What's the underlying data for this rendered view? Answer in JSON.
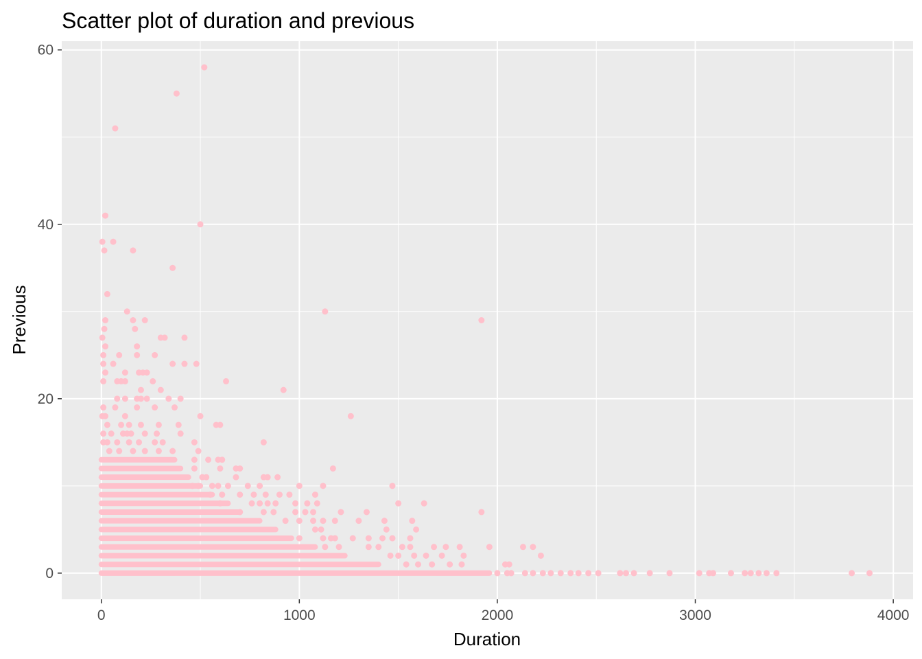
{
  "chart_data": {
    "type": "scatter",
    "title": "Scatter plot of duration and previous",
    "xlabel": "Duration",
    "ylabel": "Previous",
    "xlim": [
      -200,
      4100
    ],
    "ylim": [
      -3,
      61
    ],
    "x_ticks": [
      0,
      1000,
      2000,
      3000,
      4000
    ],
    "y_ticks": [
      0,
      20,
      40,
      60
    ],
    "grid": true,
    "point_color": "#FFC0CB",
    "panel_color": "#EBEBEB",
    "grid_color": "#FFFFFF",
    "dense_bands": [
      {
        "y": 0,
        "x_min": 0,
        "x_max": 1960
      },
      {
        "y": 1,
        "x_min": 0,
        "x_max": 1400
      },
      {
        "y": 2,
        "x_min": 0,
        "x_max": 1230
      },
      {
        "y": 3,
        "x_min": 0,
        "x_max": 1080
      },
      {
        "y": 4,
        "x_min": 0,
        "x_max": 960
      },
      {
        "y": 5,
        "x_min": 0,
        "x_max": 880
      },
      {
        "y": 6,
        "x_min": 0,
        "x_max": 800
      },
      {
        "y": 7,
        "x_min": 0,
        "x_max": 700
      },
      {
        "y": 8,
        "x_min": 0,
        "x_max": 640
      },
      {
        "y": 9,
        "x_min": 0,
        "x_max": 560
      },
      {
        "y": 10,
        "x_min": 0,
        "x_max": 500
      },
      {
        "y": 11,
        "x_min": 0,
        "x_max": 440
      },
      {
        "y": 12,
        "x_min": 0,
        "x_max": 400
      },
      {
        "y": 13,
        "x_min": 0,
        "x_max": 370
      }
    ],
    "points": [
      [
        520,
        58
      ],
      [
        380,
        55
      ],
      [
        70,
        51
      ],
      [
        20,
        41
      ],
      [
        500,
        40
      ],
      [
        5,
        38
      ],
      [
        60,
        38
      ],
      [
        15,
        37
      ],
      [
        160,
        37
      ],
      [
        360,
        35
      ],
      [
        30,
        32
      ],
      [
        1130,
        30
      ],
      [
        130,
        30
      ],
      [
        20,
        29
      ],
      [
        160,
        29
      ],
      [
        220,
        29
      ],
      [
        1920,
        29
      ],
      [
        15,
        28
      ],
      [
        170,
        28
      ],
      [
        300,
        27
      ],
      [
        320,
        27
      ],
      [
        420,
        27
      ],
      [
        5,
        27
      ],
      [
        20,
        26
      ],
      [
        180,
        26
      ],
      [
        10,
        25
      ],
      [
        90,
        25
      ],
      [
        180,
        25
      ],
      [
        270,
        25
      ],
      [
        10,
        24
      ],
      [
        60,
        24
      ],
      [
        360,
        24
      ],
      [
        420,
        24
      ],
      [
        480,
        24
      ],
      [
        20,
        23
      ],
      [
        120,
        23
      ],
      [
        190,
        23
      ],
      [
        210,
        23
      ],
      [
        230,
        23
      ],
      [
        10,
        22
      ],
      [
        80,
        22
      ],
      [
        100,
        22
      ],
      [
        120,
        22
      ],
      [
        260,
        22
      ],
      [
        630,
        22
      ],
      [
        200,
        21
      ],
      [
        300,
        21
      ],
      [
        920,
        21
      ],
      [
        80,
        20
      ],
      [
        120,
        20
      ],
      [
        180,
        20
      ],
      [
        200,
        20
      ],
      [
        230,
        20
      ],
      [
        340,
        20
      ],
      [
        400,
        20
      ],
      [
        10,
        19
      ],
      [
        70,
        19
      ],
      [
        180,
        19
      ],
      [
        270,
        19
      ],
      [
        370,
        19
      ],
      [
        5,
        18
      ],
      [
        20,
        18
      ],
      [
        120,
        18
      ],
      [
        500,
        18
      ],
      [
        1260,
        18
      ],
      [
        30,
        17
      ],
      [
        100,
        17
      ],
      [
        140,
        17
      ],
      [
        200,
        17
      ],
      [
        290,
        17
      ],
      [
        390,
        17
      ],
      [
        580,
        17
      ],
      [
        600,
        17
      ],
      [
        10,
        16
      ],
      [
        50,
        16
      ],
      [
        110,
        16
      ],
      [
        130,
        16
      ],
      [
        150,
        16
      ],
      [
        220,
        16
      ],
      [
        280,
        16
      ],
      [
        400,
        16
      ],
      [
        10,
        15
      ],
      [
        30,
        15
      ],
      [
        80,
        15
      ],
      [
        140,
        15
      ],
      [
        190,
        15
      ],
      [
        270,
        15
      ],
      [
        310,
        15
      ],
      [
        470,
        15
      ],
      [
        820,
        15
      ],
      [
        40,
        14
      ],
      [
        90,
        14
      ],
      [
        160,
        14
      ],
      [
        220,
        14
      ],
      [
        290,
        14
      ],
      [
        360,
        14
      ],
      [
        490,
        14
      ],
      [
        590,
        13
      ],
      [
        610,
        13
      ],
      [
        470,
        13
      ],
      [
        540,
        13
      ],
      [
        600,
        12
      ],
      [
        680,
        12
      ],
      [
        700,
        12
      ],
      [
        1170,
        12
      ],
      [
        470,
        12
      ],
      [
        510,
        11
      ],
      [
        530,
        11
      ],
      [
        680,
        11
      ],
      [
        820,
        11
      ],
      [
        840,
        11
      ],
      [
        890,
        11
      ],
      [
        460,
        10
      ],
      [
        490,
        10
      ],
      [
        560,
        10
      ],
      [
        590,
        10
      ],
      [
        640,
        10
      ],
      [
        740,
        10
      ],
      [
        800,
        10
      ],
      [
        1000,
        10
      ],
      [
        1120,
        10
      ],
      [
        1470,
        10
      ],
      [
        550,
        9
      ],
      [
        610,
        9
      ],
      [
        700,
        9
      ],
      [
        770,
        9
      ],
      [
        830,
        9
      ],
      [
        900,
        9
      ],
      [
        950,
        9
      ],
      [
        1080,
        9
      ],
      [
        600,
        8
      ],
      [
        760,
        8
      ],
      [
        800,
        8
      ],
      [
        840,
        8
      ],
      [
        880,
        8
      ],
      [
        980,
        8
      ],
      [
        1040,
        8
      ],
      [
        1090,
        8
      ],
      [
        1500,
        8
      ],
      [
        1630,
        8
      ],
      [
        700,
        7
      ],
      [
        820,
        7
      ],
      [
        870,
        7
      ],
      [
        980,
        7
      ],
      [
        1030,
        7
      ],
      [
        1070,
        7
      ],
      [
        1210,
        7
      ],
      [
        1340,
        7
      ],
      [
        1920,
        7
      ],
      [
        930,
        6
      ],
      [
        1000,
        6
      ],
      [
        1070,
        6
      ],
      [
        1120,
        6
      ],
      [
        1180,
        6
      ],
      [
        1300,
        6
      ],
      [
        1430,
        6
      ],
      [
        1570,
        6
      ],
      [
        1080,
        5
      ],
      [
        1110,
        5
      ],
      [
        1440,
        5
      ],
      [
        1590,
        5
      ],
      [
        1000,
        4
      ],
      [
        1120,
        4
      ],
      [
        1160,
        4
      ],
      [
        1180,
        4
      ],
      [
        1270,
        4
      ],
      [
        1350,
        4
      ],
      [
        1420,
        4
      ],
      [
        1470,
        4
      ],
      [
        1560,
        4
      ],
      [
        1130,
        3
      ],
      [
        1200,
        3
      ],
      [
        1350,
        3
      ],
      [
        1400,
        3
      ],
      [
        1520,
        3
      ],
      [
        1560,
        3
      ],
      [
        1680,
        3
      ],
      [
        1740,
        3
      ],
      [
        1810,
        3
      ],
      [
        1960,
        3
      ],
      [
        2130,
        3
      ],
      [
        2180,
        3
      ],
      [
        1460,
        2
      ],
      [
        1500,
        2
      ],
      [
        1580,
        2
      ],
      [
        1640,
        2
      ],
      [
        1720,
        2
      ],
      [
        1830,
        2
      ],
      [
        2220,
        2
      ],
      [
        1540,
        1
      ],
      [
        1600,
        1
      ],
      [
        1670,
        1
      ],
      [
        1760,
        1
      ],
      [
        1820,
        1
      ],
      [
        2040,
        1
      ],
      [
        2060,
        1
      ],
      [
        2000,
        0
      ],
      [
        2050,
        0
      ],
      [
        2070,
        0
      ],
      [
        2140,
        0
      ],
      [
        2180,
        0
      ],
      [
        2230,
        0
      ],
      [
        2270,
        0
      ],
      [
        2320,
        0
      ],
      [
        2370,
        0
      ],
      [
        2410,
        0
      ],
      [
        2460,
        0
      ],
      [
        2510,
        0
      ],
      [
        2620,
        0
      ],
      [
        2650,
        0
      ],
      [
        2690,
        0
      ],
      [
        2770,
        0
      ],
      [
        2870,
        0
      ],
      [
        3020,
        0
      ],
      [
        3070,
        0
      ],
      [
        3090,
        0
      ],
      [
        3180,
        0
      ],
      [
        3250,
        0
      ],
      [
        3280,
        0
      ],
      [
        3320,
        0
      ],
      [
        3360,
        0
      ],
      [
        3410,
        0
      ],
      [
        3790,
        0
      ],
      [
        3880,
        0
      ]
    ]
  }
}
